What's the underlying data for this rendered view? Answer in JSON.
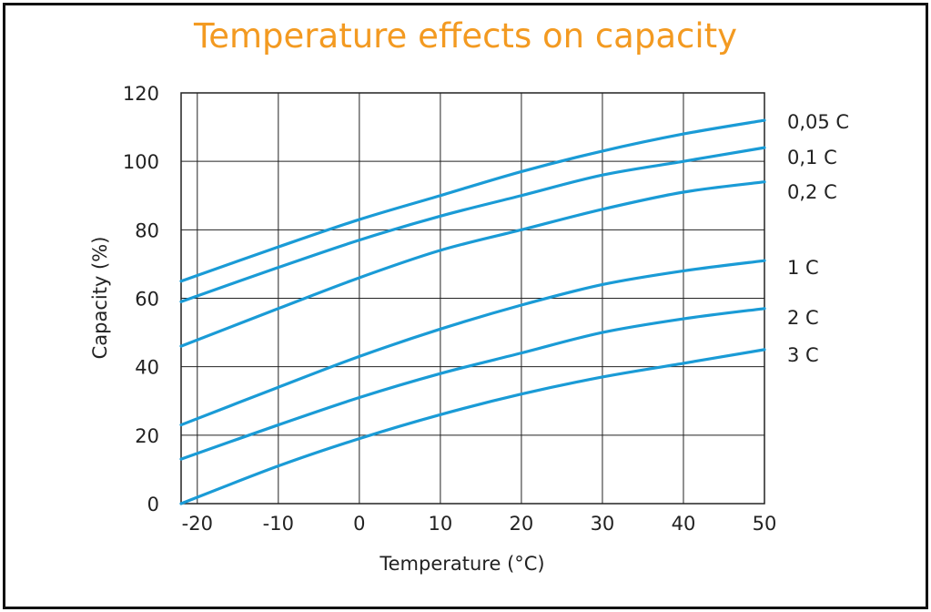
{
  "chart_data": {
    "type": "line",
    "title": "Temperature effects on capacity",
    "xlabel": "Temperature (°C)",
    "ylabel": "Capacity (%)",
    "xlim": [
      -22,
      50
    ],
    "ylim": [
      0,
      120
    ],
    "xticks": [
      -20,
      -10,
      0,
      10,
      20,
      30,
      40,
      50
    ],
    "yticks": [
      0,
      20,
      40,
      60,
      80,
      100,
      120
    ],
    "grid": true,
    "legend_placement": "right",
    "line_color": "#1a9bd6",
    "title_color": "#f39a21",
    "x": [
      -22,
      -10,
      0,
      10,
      20,
      30,
      40,
      50
    ],
    "series": [
      {
        "name": "0,05 C",
        "values": [
          65,
          75,
          83,
          90,
          97,
          103,
          108,
          112
        ]
      },
      {
        "name": "0,1 C",
        "values": [
          59,
          69,
          77,
          84,
          90,
          96,
          100,
          104
        ]
      },
      {
        "name": "0,2 C",
        "values": [
          46,
          57,
          66,
          74,
          80,
          86,
          91,
          94
        ]
      },
      {
        "name": "1 C",
        "values": [
          23,
          34,
          43,
          51,
          58,
          64,
          68,
          71
        ]
      },
      {
        "name": "2 C",
        "values": [
          13,
          23,
          31,
          38,
          44,
          50,
          54,
          57
        ]
      },
      {
        "name": "3 C",
        "values": [
          0,
          11,
          19,
          26,
          32,
          37,
          41,
          45
        ]
      }
    ]
  }
}
